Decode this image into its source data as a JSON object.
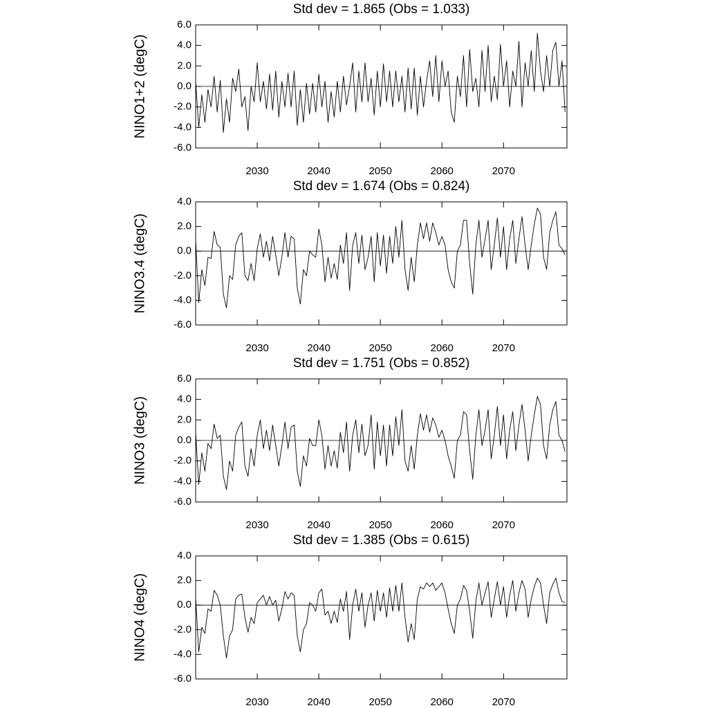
{
  "chart_data": [
    {
      "type": "line",
      "title": "Std dev = 1.865 (Obs = 1.033)",
      "ylabel": "NINO1+2 (degC)",
      "x": [
        2020,
        2020.5,
        2021,
        2021.5,
        2022,
        2022.5,
        2023,
        2023.5,
        2024,
        2024.5,
        2025,
        2025.5,
        2026,
        2026.5,
        2027,
        2027.5,
        2028,
        2028.5,
        2029,
        2029.5,
        2030,
        2030.5,
        2031,
        2031.5,
        2032,
        2032.5,
        2033,
        2033.5,
        2034,
        2034.5,
        2035,
        2035.5,
        2036,
        2036.5,
        2037,
        2037.5,
        2038,
        2038.5,
        2039,
        2039.5,
        2040,
        2040.5,
        2041,
        2041.5,
        2042,
        2042.5,
        2043,
        2043.5,
        2044,
        2044.5,
        2045,
        2045.5,
        2046,
        2046.5,
        2047,
        2047.5,
        2048,
        2048.5,
        2049,
        2049.5,
        2050,
        2050.5,
        2051,
        2051.5,
        2052,
        2052.5,
        2053,
        2053.5,
        2054,
        2054.5,
        2055,
        2055.5,
        2056,
        2056.5,
        2057,
        2057.5,
        2058,
        2058.5,
        2059,
        2059.5,
        2060,
        2060.5,
        2061,
        2061.5,
        2062,
        2062.5,
        2063,
        2063.5,
        2064,
        2064.5,
        2065,
        2065.5,
        2066,
        2066.5,
        2067,
        2067.5,
        2068,
        2068.5,
        2069,
        2069.5,
        2070,
        2070.5,
        2071,
        2071.5,
        2072,
        2072.5,
        2073,
        2073.5,
        2074,
        2074.5,
        2075,
        2075.5,
        2076,
        2076.5,
        2077,
        2077.5,
        2078,
        2078.5,
        2079,
        2079.5,
        2080
      ],
      "values": [
        0.5,
        -4.0,
        -0.8,
        -3.5,
        -0.3,
        -2.0,
        1.0,
        -2.5,
        0.6,
        -4.5,
        -1.2,
        -3.5,
        0.8,
        -0.5,
        1.7,
        -2.0,
        -1.0,
        -4.3,
        0.0,
        -1.5,
        2.3,
        -1.5,
        0.5,
        -2.2,
        1.2,
        -2.3,
        1.5,
        -3.0,
        0.5,
        -2.0,
        1.3,
        -2.0,
        1.5,
        -3.8,
        -0.3,
        -3.5,
        0.3,
        -2.7,
        0.3,
        -2.5,
        1.2,
        -2.0,
        0.5,
        -3.5,
        -0.5,
        -3.0,
        0.5,
        -2.5,
        1.0,
        -1.8,
        0.0,
        2.3,
        -2.5,
        1.5,
        -1.5,
        2.3,
        -1.5,
        0.8,
        -2.8,
        1.5,
        -2.0,
        2.2,
        -1.5,
        1.5,
        -2.0,
        1.5,
        -1.5,
        1.0,
        -2.5,
        1.8,
        -2.2,
        1.8,
        -2.8,
        1.0,
        -2.0,
        0.5,
        2.5,
        -1.0,
        3.0,
        -1.5,
        2.5,
        0.0,
        1.5,
        -2.5,
        -3.5,
        1.0,
        -1.0,
        3.0,
        -2.0,
        3.6,
        -0.5,
        0.8,
        -2.0,
        3.5,
        -0.5,
        4.0,
        -1.5,
        1.0,
        -1.3,
        4.1,
        0.0,
        2.5,
        -2.0,
        1.5,
        0.0,
        4.4,
        -2.0,
        2.3,
        0.0,
        3.5,
        -0.5,
        5.2,
        1.5,
        -0.5,
        3.0,
        0.0,
        3.5,
        4.3,
        0.0,
        2.5,
        -2.5
      ],
      "color": "#000000",
      "xlim": [
        2020,
        2080.3
      ],
      "xticks": [
        2030,
        2040,
        2050,
        2060,
        2070
      ],
      "ylim": [
        -6,
        6
      ],
      "yticks": [
        {
          "value": -6,
          "label": "-6.0"
        },
        {
          "value": -4,
          "label": "-4.0"
        },
        {
          "value": -2,
          "label": "-2.0"
        },
        {
          "value": 0,
          "label": "0.0"
        },
        {
          "value": 2,
          "label": "2.0"
        },
        {
          "value": 4,
          "label": "4.0"
        },
        {
          "value": 6,
          "label": "6.0"
        }
      ]
    },
    {
      "type": "line",
      "title": "Std dev = 1.674 (Obs = 0.824)",
      "ylabel": "NINO3.4 (degC)",
      "x": [
        2020,
        2020.5,
        2021,
        2021.5,
        2022,
        2022.5,
        2023,
        2023.5,
        2024,
        2024.5,
        2025,
        2025.5,
        2026,
        2026.5,
        2027,
        2027.5,
        2028,
        2028.5,
        2029,
        2029.5,
        2030,
        2030.5,
        2031,
        2031.5,
        2032,
        2032.5,
        2033,
        2033.5,
        2034,
        2034.5,
        2035,
        2035.5,
        2036,
        2036.5,
        2037,
        2037.5,
        2038,
        2038.5,
        2039,
        2039.5,
        2040,
        2040.5,
        2041,
        2041.5,
        2042,
        2042.5,
        2043,
        2043.5,
        2044,
        2044.5,
        2045,
        2045.5,
        2046,
        2046.5,
        2047,
        2047.5,
        2048,
        2048.5,
        2049,
        2049.5,
        2050,
        2050.5,
        2051,
        2051.5,
        2052,
        2052.5,
        2053,
        2053.5,
        2054,
        2054.5,
        2055,
        2055.5,
        2056,
        2056.5,
        2057,
        2057.5,
        2058,
        2058.5,
        2059,
        2059.5,
        2060,
        2060.5,
        2061,
        2061.5,
        2062,
        2062.5,
        2063,
        2063.5,
        2064,
        2064.5,
        2065,
        2065.5,
        2066,
        2066.5,
        2067,
        2067.5,
        2068,
        2068.5,
        2069,
        2069.5,
        2070,
        2070.5,
        2071,
        2071.5,
        2072,
        2072.5,
        2073,
        2073.5,
        2074,
        2074.5,
        2075,
        2075.5,
        2076,
        2076.5,
        2077,
        2077.5,
        2078,
        2078.5,
        2079,
        2079.5,
        2080
      ],
      "values": [
        0.9,
        -4.2,
        -1.5,
        -2.8,
        -0.5,
        -0.6,
        1.6,
        0.5,
        0.3,
        -3.5,
        -4.6,
        -2.0,
        -2.3,
        0.5,
        1.2,
        1.5,
        -2.0,
        -2.4,
        -1.0,
        -2.4,
        0.2,
        1.4,
        -0.5,
        0.8,
        -0.8,
        1.2,
        -0.3,
        -2.0,
        -0.5,
        1.5,
        -0.5,
        1.2,
        1.0,
        -3.0,
        -4.3,
        -1.5,
        -2.0,
        0.0,
        -0.3,
        -0.5,
        1.8,
        0.5,
        -2.5,
        -0.5,
        -2.2,
        -1.0,
        -2.3,
        0.5,
        -1.0,
        1.5,
        -3.2,
        0.5,
        1.5,
        -1.0,
        1.3,
        -1.5,
        -0.5,
        1.2,
        -2.5,
        1.5,
        -1.2,
        1.3,
        -1.8,
        1.2,
        -1.0,
        2.0,
        -0.5,
        2.5,
        -1.5,
        -3.2,
        -0.5,
        -2.5,
        0.5,
        2.3,
        1.0,
        2.3,
        0.8,
        2.3,
        1.5,
        0.5,
        1.2,
        0.5,
        -1.5,
        -2.5,
        -3.0,
        0.0,
        0.5,
        2.5,
        2.5,
        -1.0,
        -3.5,
        0.5,
        2.5,
        -0.5,
        1.0,
        2.5,
        -1.5,
        0.5,
        2.7,
        -0.5,
        2.0,
        -1.5,
        1.0,
        2.5,
        -1.0,
        1.0,
        2.8,
        0.5,
        -1.5,
        0.5,
        2.2,
        3.5,
        3.0,
        -0.5,
        -1.5,
        1.5,
        2.5,
        3.2,
        0.5,
        0.2,
        -0.3
      ],
      "color": "#000000",
      "xlim": [
        2020,
        2080.3
      ],
      "xticks": [
        2030,
        2040,
        2050,
        2060,
        2070
      ],
      "ylim": [
        -6,
        4
      ],
      "yticks": [
        {
          "value": -6,
          "label": "-6.0"
        },
        {
          "value": -4,
          "label": "-4.0"
        },
        {
          "value": -2,
          "label": "-2.0"
        },
        {
          "value": 0,
          "label": "0.0"
        },
        {
          "value": 2,
          "label": "2.0"
        },
        {
          "value": 4,
          "label": "4.0"
        }
      ]
    },
    {
      "type": "line",
      "title": "Std dev = 1.751 (Obs = 0.852)",
      "ylabel": "NINO3 (degC)",
      "x": [
        2020,
        2020.5,
        2021,
        2021.5,
        2022,
        2022.5,
        2023,
        2023.5,
        2024,
        2024.5,
        2025,
        2025.5,
        2026,
        2026.5,
        2027,
        2027.5,
        2028,
        2028.5,
        2029,
        2029.5,
        2030,
        2030.5,
        2031,
        2031.5,
        2032,
        2032.5,
        2033,
        2033.5,
        2034,
        2034.5,
        2035,
        2035.5,
        2036,
        2036.5,
        2037,
        2037.5,
        2038,
        2038.5,
        2039,
        2039.5,
        2040,
        2040.5,
        2041,
        2041.5,
        2042,
        2042.5,
        2043,
        2043.5,
        2044,
        2044.5,
        2045,
        2045.5,
        2046,
        2046.5,
        2047,
        2047.5,
        2048,
        2048.5,
        2049,
        2049.5,
        2050,
        2050.5,
        2051,
        2051.5,
        2052,
        2052.5,
        2053,
        2053.5,
        2054,
        2054.5,
        2055,
        2055.5,
        2056,
        2056.5,
        2057,
        2057.5,
        2058,
        2058.5,
        2059,
        2059.5,
        2060,
        2060.5,
        2061,
        2061.5,
        2062,
        2062.5,
        2063,
        2063.5,
        2064,
        2064.5,
        2065,
        2065.5,
        2066,
        2066.5,
        2067,
        2067.5,
        2068,
        2068.5,
        2069,
        2069.5,
        2070,
        2070.5,
        2071,
        2071.5,
        2072,
        2072.5,
        2073,
        2073.5,
        2074,
        2074.5,
        2075,
        2075.5,
        2076,
        2076.5,
        2077,
        2077.5,
        2078,
        2078.5,
        2079,
        2079.5,
        2080
      ],
      "values": [
        0.8,
        -4.3,
        -1.2,
        -3.0,
        -0.3,
        -0.8,
        1.6,
        0.2,
        0.5,
        -3.5,
        -4.8,
        -2.0,
        -3.0,
        0.5,
        1.3,
        1.8,
        -2.5,
        -3.5,
        -0.8,
        -2.5,
        0.5,
        2.0,
        -0.8,
        1.0,
        -1.0,
        1.5,
        -0.5,
        -2.5,
        -0.5,
        1.8,
        -0.8,
        1.3,
        1.5,
        -3.0,
        -4.5,
        -1.5,
        -2.5,
        0.2,
        -0.5,
        -0.5,
        2.0,
        0.5,
        -2.8,
        -0.5,
        -2.5,
        -1.0,
        -2.7,
        0.8,
        -1.2,
        1.8,
        -3.0,
        0.5,
        2.0,
        -1.2,
        1.6,
        -1.5,
        -0.5,
        2.5,
        -2.8,
        1.8,
        -1.5,
        1.5,
        -2.5,
        1.5,
        -1.5,
        2.3,
        -0.5,
        3.0,
        -2.0,
        -3.0,
        -0.5,
        -2.8,
        0.5,
        2.6,
        1.0,
        2.5,
        0.8,
        2.2,
        1.5,
        0.3,
        1.0,
        0.0,
        -1.5,
        -2.5,
        -3.7,
        0.0,
        0.5,
        2.8,
        2.5,
        -1.0,
        -3.8,
        0.5,
        3.0,
        -0.5,
        1.0,
        3.0,
        -1.8,
        0.5,
        3.3,
        -0.5,
        2.5,
        -1.8,
        1.0,
        2.8,
        -1.0,
        1.5,
        3.5,
        1.0,
        -2.0,
        0.5,
        2.5,
        4.3,
        3.5,
        -0.5,
        -1.8,
        1.5,
        3.0,
        3.8,
        0.5,
        0.0,
        -1.1
      ],
      "color": "#000000",
      "xlim": [
        2020,
        2080.3
      ],
      "xticks": [
        2030,
        2040,
        2050,
        2060,
        2070
      ],
      "ylim": [
        -6,
        6
      ],
      "yticks": [
        {
          "value": -6,
          "label": "-6.0"
        },
        {
          "value": -4,
          "label": "-4.0"
        },
        {
          "value": -2,
          "label": "-2.0"
        },
        {
          "value": 0,
          "label": "0.0"
        },
        {
          "value": 2,
          "label": "2.0"
        },
        {
          "value": 4,
          "label": "4.0"
        },
        {
          "value": 6,
          "label": "6.0"
        }
      ]
    },
    {
      "type": "line",
      "title": "Std dev = 1.385 (Obs = 0.615)",
      "ylabel": "NINO4 (degC)",
      "x": [
        2020,
        2020.5,
        2021,
        2021.5,
        2022,
        2022.5,
        2023,
        2023.5,
        2024,
        2024.5,
        2025,
        2025.5,
        2026,
        2026.5,
        2027,
        2027.5,
        2028,
        2028.5,
        2029,
        2029.5,
        2030,
        2030.5,
        2031,
        2031.5,
        2032,
        2032.5,
        2033,
        2033.5,
        2034,
        2034.5,
        2035,
        2035.5,
        2036,
        2036.5,
        2037,
        2037.5,
        2038,
        2038.5,
        2039,
        2039.5,
        2040,
        2040.5,
        2041,
        2041.5,
        2042,
        2042.5,
        2043,
        2043.5,
        2044,
        2044.5,
        2045,
        2045.5,
        2046,
        2046.5,
        2047,
        2047.5,
        2048,
        2048.5,
        2049,
        2049.5,
        2050,
        2050.5,
        2051,
        2051.5,
        2052,
        2052.5,
        2053,
        2053.5,
        2054,
        2054.5,
        2055,
        2055.5,
        2056,
        2056.5,
        2057,
        2057.5,
        2058,
        2058.5,
        2059,
        2059.5,
        2060,
        2060.5,
        2061,
        2061.5,
        2062,
        2062.5,
        2063,
        2063.5,
        2064,
        2064.5,
        2065,
        2065.5,
        2066,
        2066.5,
        2067,
        2067.5,
        2068,
        2068.5,
        2069,
        2069.5,
        2070,
        2070.5,
        2071,
        2071.5,
        2072,
        2072.5,
        2073,
        2073.5,
        2074,
        2074.5,
        2075,
        2075.5,
        2076,
        2076.5,
        2077,
        2077.5,
        2078,
        2078.5,
        2079,
        2079.5,
        2080
      ],
      "values": [
        0.6,
        -3.8,
        -1.8,
        -2.3,
        -0.3,
        -0.5,
        1.2,
        0.8,
        0.0,
        -2.5,
        -4.3,
        -2.5,
        -2.0,
        0.5,
        0.8,
        0.9,
        -1.0,
        -2.2,
        -1.0,
        -1.5,
        0.2,
        0.5,
        0.8,
        0.0,
        0.7,
        0.0,
        0.4,
        -1.3,
        -0.3,
        1.1,
        0.5,
        1.0,
        0.8,
        -2.5,
        -3.8,
        -2.0,
        -1.5,
        0.2,
        0.0,
        -0.5,
        1.0,
        1.3,
        -0.8,
        -0.5,
        -1.5,
        -0.5,
        -1.4,
        0.5,
        -0.5,
        1.1,
        -2.8,
        0.0,
        1.3,
        -0.5,
        1.0,
        -1.8,
        0.0,
        1.0,
        -1.3,
        1.2,
        -0.5,
        1.0,
        -1.0,
        1.4,
        -0.5,
        1.6,
        -0.5,
        1.8,
        -1.0,
        -3.0,
        -1.5,
        -2.8,
        0.5,
        1.5,
        1.3,
        1.8,
        1.5,
        1.8,
        1.2,
        1.5,
        1.8,
        1.0,
        -0.3,
        -1.5,
        -2.3,
        0.0,
        0.5,
        1.6,
        1.2,
        -0.5,
        -2.7,
        0.3,
        1.8,
        0.0,
        1.0,
        1.9,
        -1.0,
        0.5,
        1.9,
        0.0,
        1.5,
        -1.0,
        0.8,
        2.0,
        -0.5,
        1.0,
        2.0,
        1.3,
        -1.0,
        0.5,
        1.5,
        2.2,
        1.8,
        0.0,
        -1.5,
        1.0,
        1.7,
        2.2,
        1.0,
        0.3,
        0.2
      ],
      "color": "#000000",
      "xlim": [
        2020,
        2080.3
      ],
      "xticks": [
        2030,
        2040,
        2050,
        2060,
        2070
      ],
      "ylim": [
        -6,
        4
      ],
      "yticks": [
        {
          "value": -6,
          "label": "-6.0"
        },
        {
          "value": -4,
          "label": "-4.0"
        },
        {
          "value": -2,
          "label": "-2.0"
        },
        {
          "value": 0,
          "label": "0.0"
        },
        {
          "value": 2,
          "label": "2.0"
        },
        {
          "value": 4,
          "label": "4.0"
        }
      ]
    }
  ]
}
